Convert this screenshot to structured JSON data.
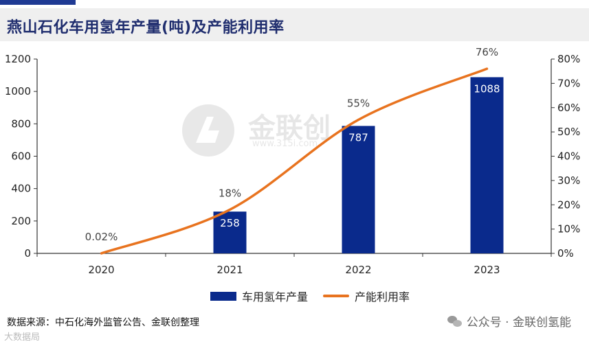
{
  "title": "燕山石化车用氢年产量(吨)及产能利用率",
  "colors": {
    "bar": "#0a2a8c",
    "line": "#e8731f",
    "title_text": "#1f2d6e",
    "title_accent": "#1f3a93"
  },
  "watermark": {
    "brand": "金联创",
    "url": "www.315i.com"
  },
  "legend": {
    "bar_label": "车用氢年产量",
    "line_label": "产能利用率"
  },
  "source": "数据来源：中石化海外监管公告、金联创整理",
  "footer": {
    "brand": "公众号 · 金联创氢能",
    "corner": "大数据局"
  },
  "chart_data": {
    "type": "bar+line",
    "categories": [
      "2020",
      "2021",
      "2022",
      "2023"
    ],
    "series": [
      {
        "name": "车用氢年产量",
        "type": "bar",
        "axis": "left",
        "values": [
          0,
          258,
          787,
          1088
        ],
        "labels": [
          "",
          "258",
          "787",
          "1088"
        ]
      },
      {
        "name": "产能利用率",
        "type": "line",
        "axis": "right",
        "values": [
          0.02,
          18,
          55,
          76
        ],
        "labels": [
          "0.02%",
          "18%",
          "55%",
          "76%"
        ]
      }
    ],
    "y_left": {
      "min": 0,
      "max": 1200,
      "ticks": [
        0,
        200,
        400,
        600,
        800,
        1000,
        1200
      ]
    },
    "y_right": {
      "min": 0,
      "max": 80,
      "ticks": [
        0,
        10,
        20,
        30,
        40,
        50,
        60,
        70,
        80
      ],
      "tick_labels": [
        "0%",
        "10%",
        "20%",
        "30%",
        "40%",
        "50%",
        "60%",
        "70%",
        "80%"
      ]
    },
    "grid": false,
    "legend_position": "bottom"
  }
}
